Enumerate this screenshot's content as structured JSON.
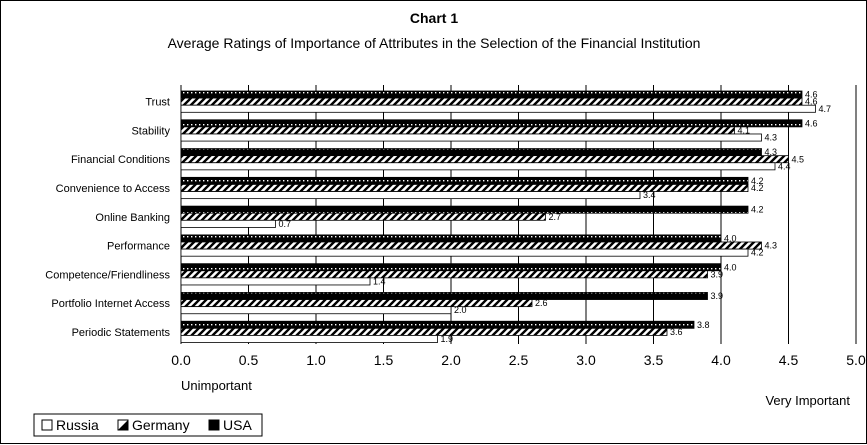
{
  "chart_data": {
    "type": "bar",
    "orientation": "horizontal",
    "title": "Chart 1",
    "subtitle": "Average Ratings of Importance of Attributes in the Selection of the Financial Institution",
    "categories": [
      "Trust",
      "Stability",
      "Financial Conditions",
      "Convenience to Access",
      "Online Banking",
      "Performance",
      "Competence/Friendliness",
      "Portfolio Internet Access",
      "Periodic Statements"
    ],
    "series": [
      {
        "name": "USA",
        "values": [
          4.6,
          4.6,
          4.3,
          4.2,
          4.2,
          4.0,
          4.0,
          3.9,
          3.8
        ],
        "labels": [
          "4.6",
          "4.6",
          "4.3",
          "4.2",
          "4.2",
          "4.0",
          "4.0",
          "3.9",
          "3.8"
        ],
        "pattern": "dotted-black"
      },
      {
        "name": "Germany",
        "values": [
          4.6,
          4.1,
          4.5,
          4.2,
          2.7,
          4.3,
          3.9,
          2.6,
          3.6
        ],
        "labels": [
          "4.6",
          "4.1",
          "4.5",
          "4.2",
          "2.7",
          "4.3",
          "3.9",
          "2.6",
          "3.6"
        ],
        "pattern": "diagonal-stripes"
      },
      {
        "name": "Russia",
        "values": [
          4.7,
          4.3,
          4.4,
          3.4,
          0.7,
          4.2,
          1.4,
          2.0,
          1.9
        ],
        "labels": [
          "4.7",
          "4.3",
          "4.4",
          "3.4",
          "0.7",
          "4.2",
          "1.4",
          "2.0",
          "1.9"
        ],
        "pattern": "white"
      }
    ],
    "xlim": [
      0.0,
      5.0
    ],
    "xticks": [
      "0.0",
      "0.5",
      "1.0",
      "1.5",
      "2.0",
      "2.5",
      "3.0",
      "3.5",
      "4.0",
      "4.5",
      "5.0"
    ],
    "xlabel_left": "Unimportant",
    "xlabel_right": "Very Important",
    "grid": "vertical",
    "legend": {
      "placement": "bottom-left",
      "items": [
        "Russia",
        "Germany",
        "USA"
      ]
    }
  }
}
